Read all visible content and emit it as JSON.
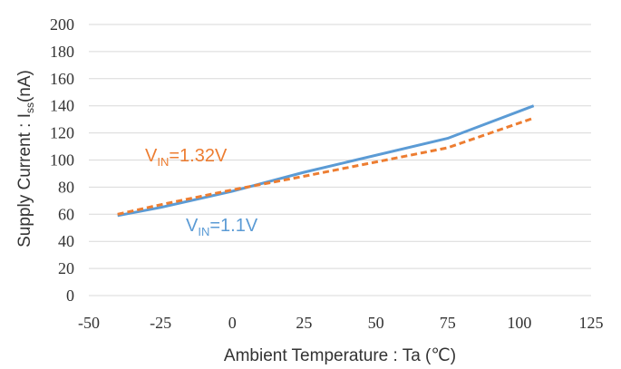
{
  "chart_data": {
    "type": "line",
    "xlabel": "Ambient Temperature : Ta (℃)",
    "ylabel": {
      "prefix": "Supply Current : I",
      "sub": "ss",
      "suffix": "(nA)"
    },
    "xlim": [
      -50,
      125
    ],
    "ylim": [
      0,
      200
    ],
    "x_ticks": [
      "-50",
      "-25",
      "0",
      "25",
      "50",
      "75",
      "100",
      "125"
    ],
    "y_ticks": [
      "0",
      "20",
      "40",
      "60",
      "80",
      "100",
      "120",
      "140",
      "160",
      "180",
      "200"
    ],
    "grid": "horizontal",
    "series": [
      {
        "label": {
          "prefix": "V",
          "sub": "IN",
          "suffix": "=1.1V"
        },
        "color": "#5b9bd5",
        "style": "solid",
        "x": [
          -40,
          -25,
          0,
          25,
          75,
          105
        ],
        "y": [
          59,
          65,
          77,
          91,
          116,
          140
        ]
      },
      {
        "label": {
          "prefix": "V",
          "sub": "IN",
          "suffix": "=1.32V"
        },
        "color": "#ed7d31",
        "style": "dashed",
        "x": [
          -40,
          -25,
          0,
          25,
          75,
          105
        ],
        "y": [
          60,
          67,
          78,
          88,
          109,
          131
        ]
      }
    ]
  }
}
